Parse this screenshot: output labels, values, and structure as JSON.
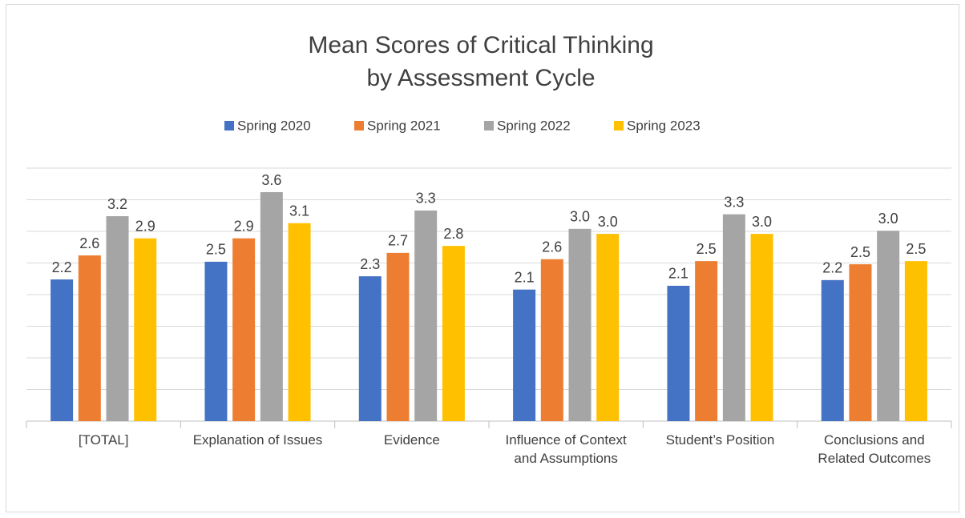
{
  "chart_data": {
    "type": "bar",
    "title": "Mean Scores of Critical Thinking\nby Assessment Cycle",
    "categories": [
      "[TOTAL]",
      "Explanation of Issues",
      "Evidence",
      "Influence of Context and Assumptions",
      "Student’s Position",
      "Conclusions and Related Outcomes"
    ],
    "series": [
      {
        "name": "Spring 2020",
        "color": "#4472c4",
        "values": [
          2.24,
          2.52,
          2.29,
          2.08,
          2.14,
          2.23
        ],
        "value_labels": [
          "2.2",
          "2.5",
          "2.3",
          "2.1",
          "2.1",
          "2.2"
        ]
      },
      {
        "name": "Spring 2021",
        "color": "#ed7d31",
        "values": [
          2.62,
          2.89,
          2.66,
          2.56,
          2.53,
          2.48
        ],
        "value_labels": [
          "2.6",
          "2.9",
          "2.7",
          "2.6",
          "2.5",
          "2.5"
        ]
      },
      {
        "name": "Spring 2022",
        "color": "#a5a5a5",
        "values": [
          3.24,
          3.62,
          3.33,
          3.04,
          3.27,
          3.01
        ],
        "value_labels": [
          "3.2",
          "3.6",
          "3.3",
          "3.0",
          "3.3",
          "3.0"
        ]
      },
      {
        "name": "Spring 2023",
        "color": "#ffc000",
        "values": [
          2.89,
          3.13,
          2.77,
          2.96,
          2.96,
          2.53
        ],
        "value_labels": [
          "2.9",
          "3.1",
          "2.8",
          "3.0",
          "3.0",
          "2.5"
        ]
      }
    ],
    "ylim": [
      0,
      4
    ],
    "yticks": [
      0,
      0.5,
      1,
      1.5,
      2,
      2.5,
      3,
      3.5,
      4
    ],
    "grid": true,
    "legend": "top"
  }
}
